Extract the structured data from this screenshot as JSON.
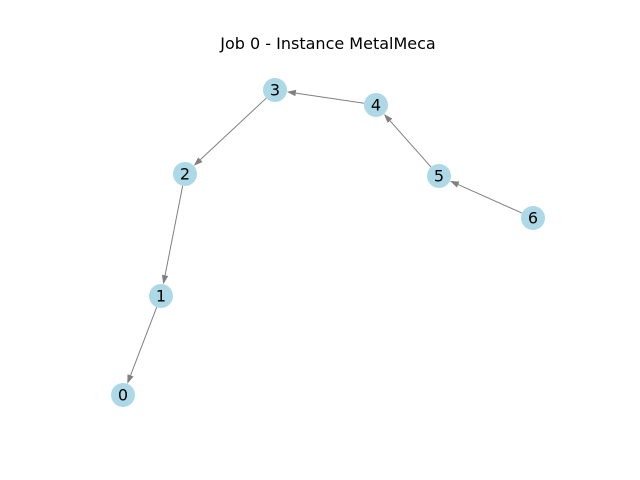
{
  "title": "Job 0 - Instance MetalMeca",
  "colors": {
    "node_fill": "#add8e6",
    "edge": "#808080",
    "text": "#000000",
    "background": "#ffffff"
  },
  "graph": {
    "directed": true,
    "nodes": [
      {
        "id": "0",
        "label": "0"
      },
      {
        "id": "1",
        "label": "1"
      },
      {
        "id": "2",
        "label": "2"
      },
      {
        "id": "3",
        "label": "3"
      },
      {
        "id": "4",
        "label": "4"
      },
      {
        "id": "5",
        "label": "5"
      },
      {
        "id": "6",
        "label": "6"
      }
    ],
    "edges": [
      {
        "from": "6",
        "to": "5"
      },
      {
        "from": "5",
        "to": "4"
      },
      {
        "from": "4",
        "to": "3"
      },
      {
        "from": "3",
        "to": "2"
      },
      {
        "from": "2",
        "to": "1"
      },
      {
        "from": "1",
        "to": "0"
      }
    ]
  }
}
